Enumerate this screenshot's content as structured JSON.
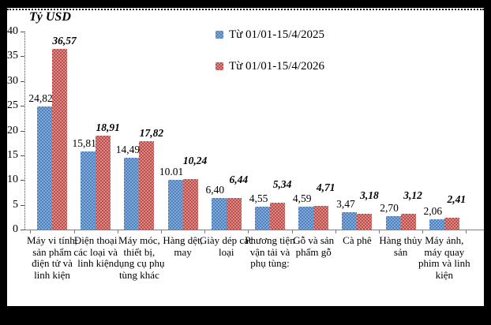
{
  "title": "Tỷ USD",
  "legend": {
    "items": [
      {
        "label": "Từ 01/01-15/4/2025",
        "color": "#4F81BD"
      },
      {
        "label": "Từ 01/01-15/4/2026",
        "color": "#BE4B48"
      }
    ]
  },
  "colors": {
    "blue_dark": "#4F81BD",
    "blue_light": "#83A9D8",
    "red_dark": "#BE4D4A",
    "red_light": "#D78C8A",
    "axis": "#7f7f7f",
    "frame": "#000000"
  },
  "chart_data": {
    "type": "bar",
    "title": "Tỷ USD",
    "ylabel": "Tỷ USD",
    "xlabel": "",
    "categories": [
      "Máy vi tính, sản phẩm điện tử và linh kiện",
      "Điện thoại các loại và linh kiện",
      "Máy móc, thiết bị, dụng cụ phụ tùng khác",
      "Hàng dệt, may",
      "Giày dép các loại",
      "Phương tiện vận tải và phụ tùng:",
      "Gỗ và sản phẩm gỗ",
      "Cà phê",
      "Hàng thủy sản",
      "Máy ảnh, máy quay phim và linh kiện"
    ],
    "series": [
      {
        "name": "Từ 01/01-15/4/2025",
        "color": "#4F81BD",
        "values": [
          24.82,
          15.81,
          14.49,
          10.01,
          6.4,
          4.55,
          4.59,
          3.47,
          2.7,
          2.06
        ],
        "labels": [
          "24,82",
          "15,81",
          "14,49",
          "10.01",
          "6,40",
          "4,55",
          "4,59",
          "3,47",
          "2,70",
          "2,06"
        ]
      },
      {
        "name": "Từ 01/01-15/4/2026",
        "color": "#BE4B48",
        "values": [
          36.57,
          18.91,
          17.82,
          10.24,
          6.44,
          5.34,
          4.71,
          3.18,
          3.12,
          2.41
        ],
        "labels": [
          "36,57",
          "18,91",
          "17,82",
          "10,24",
          "6,44",
          "5,34",
          "4,71",
          "3,18",
          "3,12",
          "2,41"
        ]
      }
    ],
    "ylim": [
      0,
      40
    ],
    "yticks": [
      0,
      5,
      10,
      15,
      20,
      25,
      30,
      35,
      40
    ],
    "grid": false,
    "legend_position": "top-center"
  }
}
